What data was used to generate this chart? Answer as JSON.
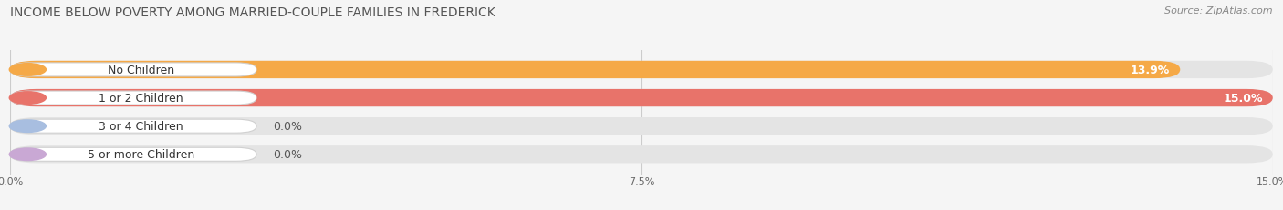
{
  "title": "INCOME BELOW POVERTY AMONG MARRIED-COUPLE FAMILIES IN FREDERICK",
  "source": "Source: ZipAtlas.com",
  "categories": [
    "No Children",
    "1 or 2 Children",
    "3 or 4 Children",
    "5 or more Children"
  ],
  "values": [
    13.9,
    15.0,
    0.0,
    0.0
  ],
  "bar_colors": [
    "#F5A947",
    "#E8736A",
    "#A8BEE0",
    "#C9A8D4"
  ],
  "max_value": 15.0,
  "xticks": [
    0.0,
    7.5,
    15.0
  ],
  "xtick_labels": [
    "0.0%",
    "7.5%",
    "15.0%"
  ],
  "background_color": "#f5f5f5",
  "bar_background_color": "#e4e4e4",
  "title_fontsize": 10,
  "source_fontsize": 8,
  "label_fontsize": 9,
  "value_fontsize": 9
}
